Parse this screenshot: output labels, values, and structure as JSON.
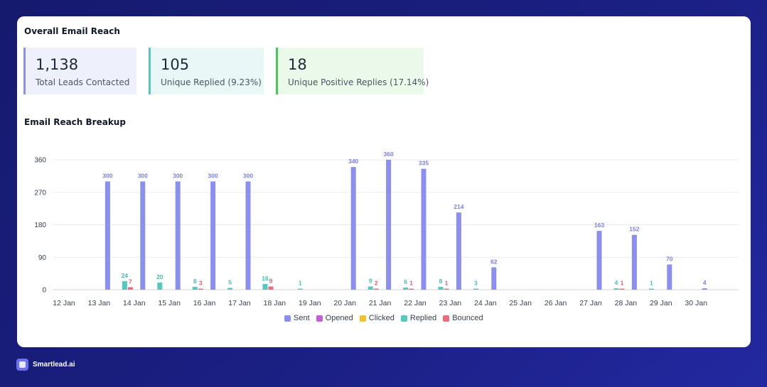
{
  "page": {
    "reach_title": "Overall Email Reach",
    "breakup_title": "Email Reach Breakup",
    "brand": "Smartlead.ai"
  },
  "stats": [
    {
      "value": "1,138",
      "label": "Total Leads Contacted",
      "color": "#8b8ff0"
    },
    {
      "value": "105",
      "label": "Unique Replied (9.23%)",
      "color": "#56c8c0"
    },
    {
      "value": "18",
      "label": "Unique Positive Replies (17.14%)",
      "color": "#4cc65a"
    }
  ],
  "chart_data": {
    "type": "bar",
    "categories": [
      "12 Jan",
      "13 Jan",
      "14 Jan",
      "15 Jan",
      "16 Jan",
      "17 Jan",
      "18 Jan",
      "19 Jan",
      "20 Jan",
      "21 Jan",
      "22 Jan",
      "23 Jan",
      "24 Jan",
      "25 Jan",
      "26 Jan",
      "27 Jan",
      "28 Jan",
      "29 Jan",
      "30 Jan"
    ],
    "yticks": [
      0,
      90,
      180,
      270,
      360
    ],
    "ylim": [
      0,
      360
    ],
    "grid": true,
    "legend_position": "bottom",
    "series": [
      {
        "name": "Sent",
        "color": "#8b8ff0",
        "label_color": "#7b7fe6",
        "values": [
          0,
          300,
          300,
          300,
          300,
          300,
          0,
          0,
          340,
          360,
          335,
          214,
          62,
          0,
          0,
          163,
          152,
          70,
          4
        ]
      },
      {
        "name": "Opened",
        "color": "#c65ed6",
        "label_color": "#c65ed6",
        "values": [
          0,
          0,
          0,
          0,
          0,
          0,
          0,
          0,
          0,
          0,
          0,
          0,
          0,
          0,
          0,
          0,
          0,
          0,
          0
        ]
      },
      {
        "name": "Clicked",
        "color": "#f2c12e",
        "label_color": "#e0b020",
        "values": [
          0,
          0,
          0,
          0,
          0,
          0,
          0,
          0,
          0,
          0,
          0,
          0,
          0,
          0,
          0,
          0,
          0,
          0,
          0
        ]
      },
      {
        "name": "Replied",
        "color": "#56c8c0",
        "label_color": "#45bdb4",
        "values": [
          0,
          24,
          20,
          8,
          5,
          16,
          1,
          0,
          9,
          6,
          8,
          3,
          0,
          0,
          0,
          4,
          1,
          0,
          0
        ]
      },
      {
        "name": "Bounced",
        "color": "#ec6b7e",
        "label_color": "#e05a6e",
        "values": [
          0,
          7,
          0,
          3,
          0,
          9,
          0,
          0,
          2,
          1,
          1,
          0,
          0,
          0,
          0,
          1,
          0,
          0,
          0
        ]
      }
    ]
  }
}
